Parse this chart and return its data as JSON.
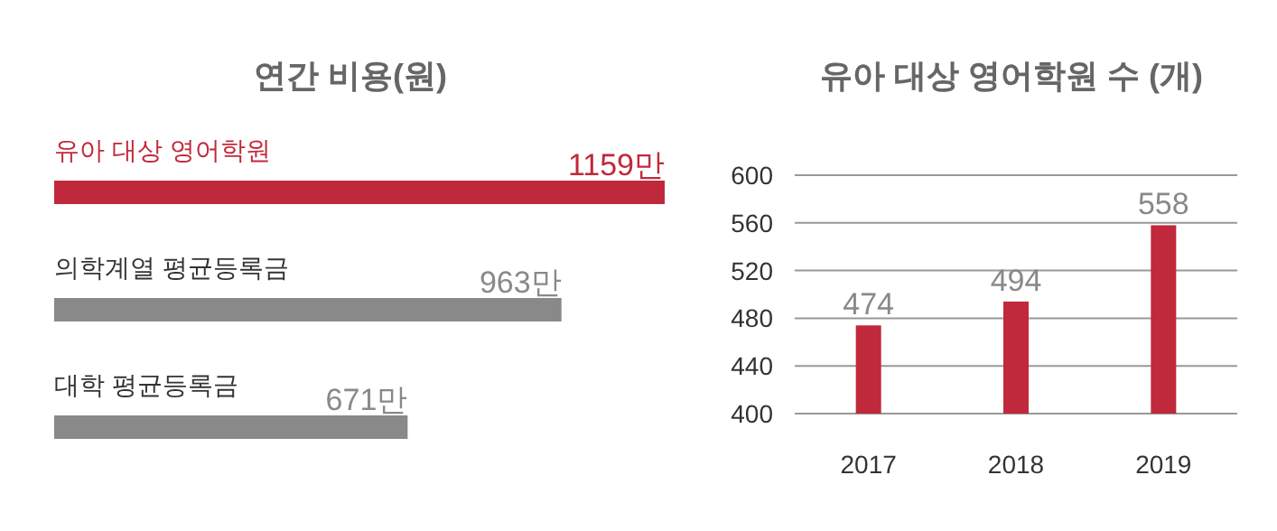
{
  "chart_data": [
    {
      "type": "bar",
      "orientation": "horizontal",
      "title": "연간 비용(원)",
      "categories": [
        "유아 대상 영어학원",
        "의학계열 평균등록금",
        "대학 평균등록금"
      ],
      "values": [
        1159,
        963,
        671
      ],
      "colors": [
        "#c0293b",
        "#898989",
        "#898989"
      ],
      "value_labels": [
        "1159만",
        "963만",
        "671만"
      ]
    },
    {
      "type": "bar",
      "title": "유아 대상 영어학원 수 (개)",
      "categories": [
        "2017",
        "2018",
        "2019"
      ],
      "values": [
        474,
        494,
        558
      ],
      "colors": [
        "#c0293b",
        "#c0293b",
        "#c0293b"
      ],
      "ylim": [
        400,
        600
      ],
      "yticks": [
        400,
        440,
        480,
        520,
        560,
        600
      ],
      "grid": "y",
      "data_labels": true
    }
  ]
}
